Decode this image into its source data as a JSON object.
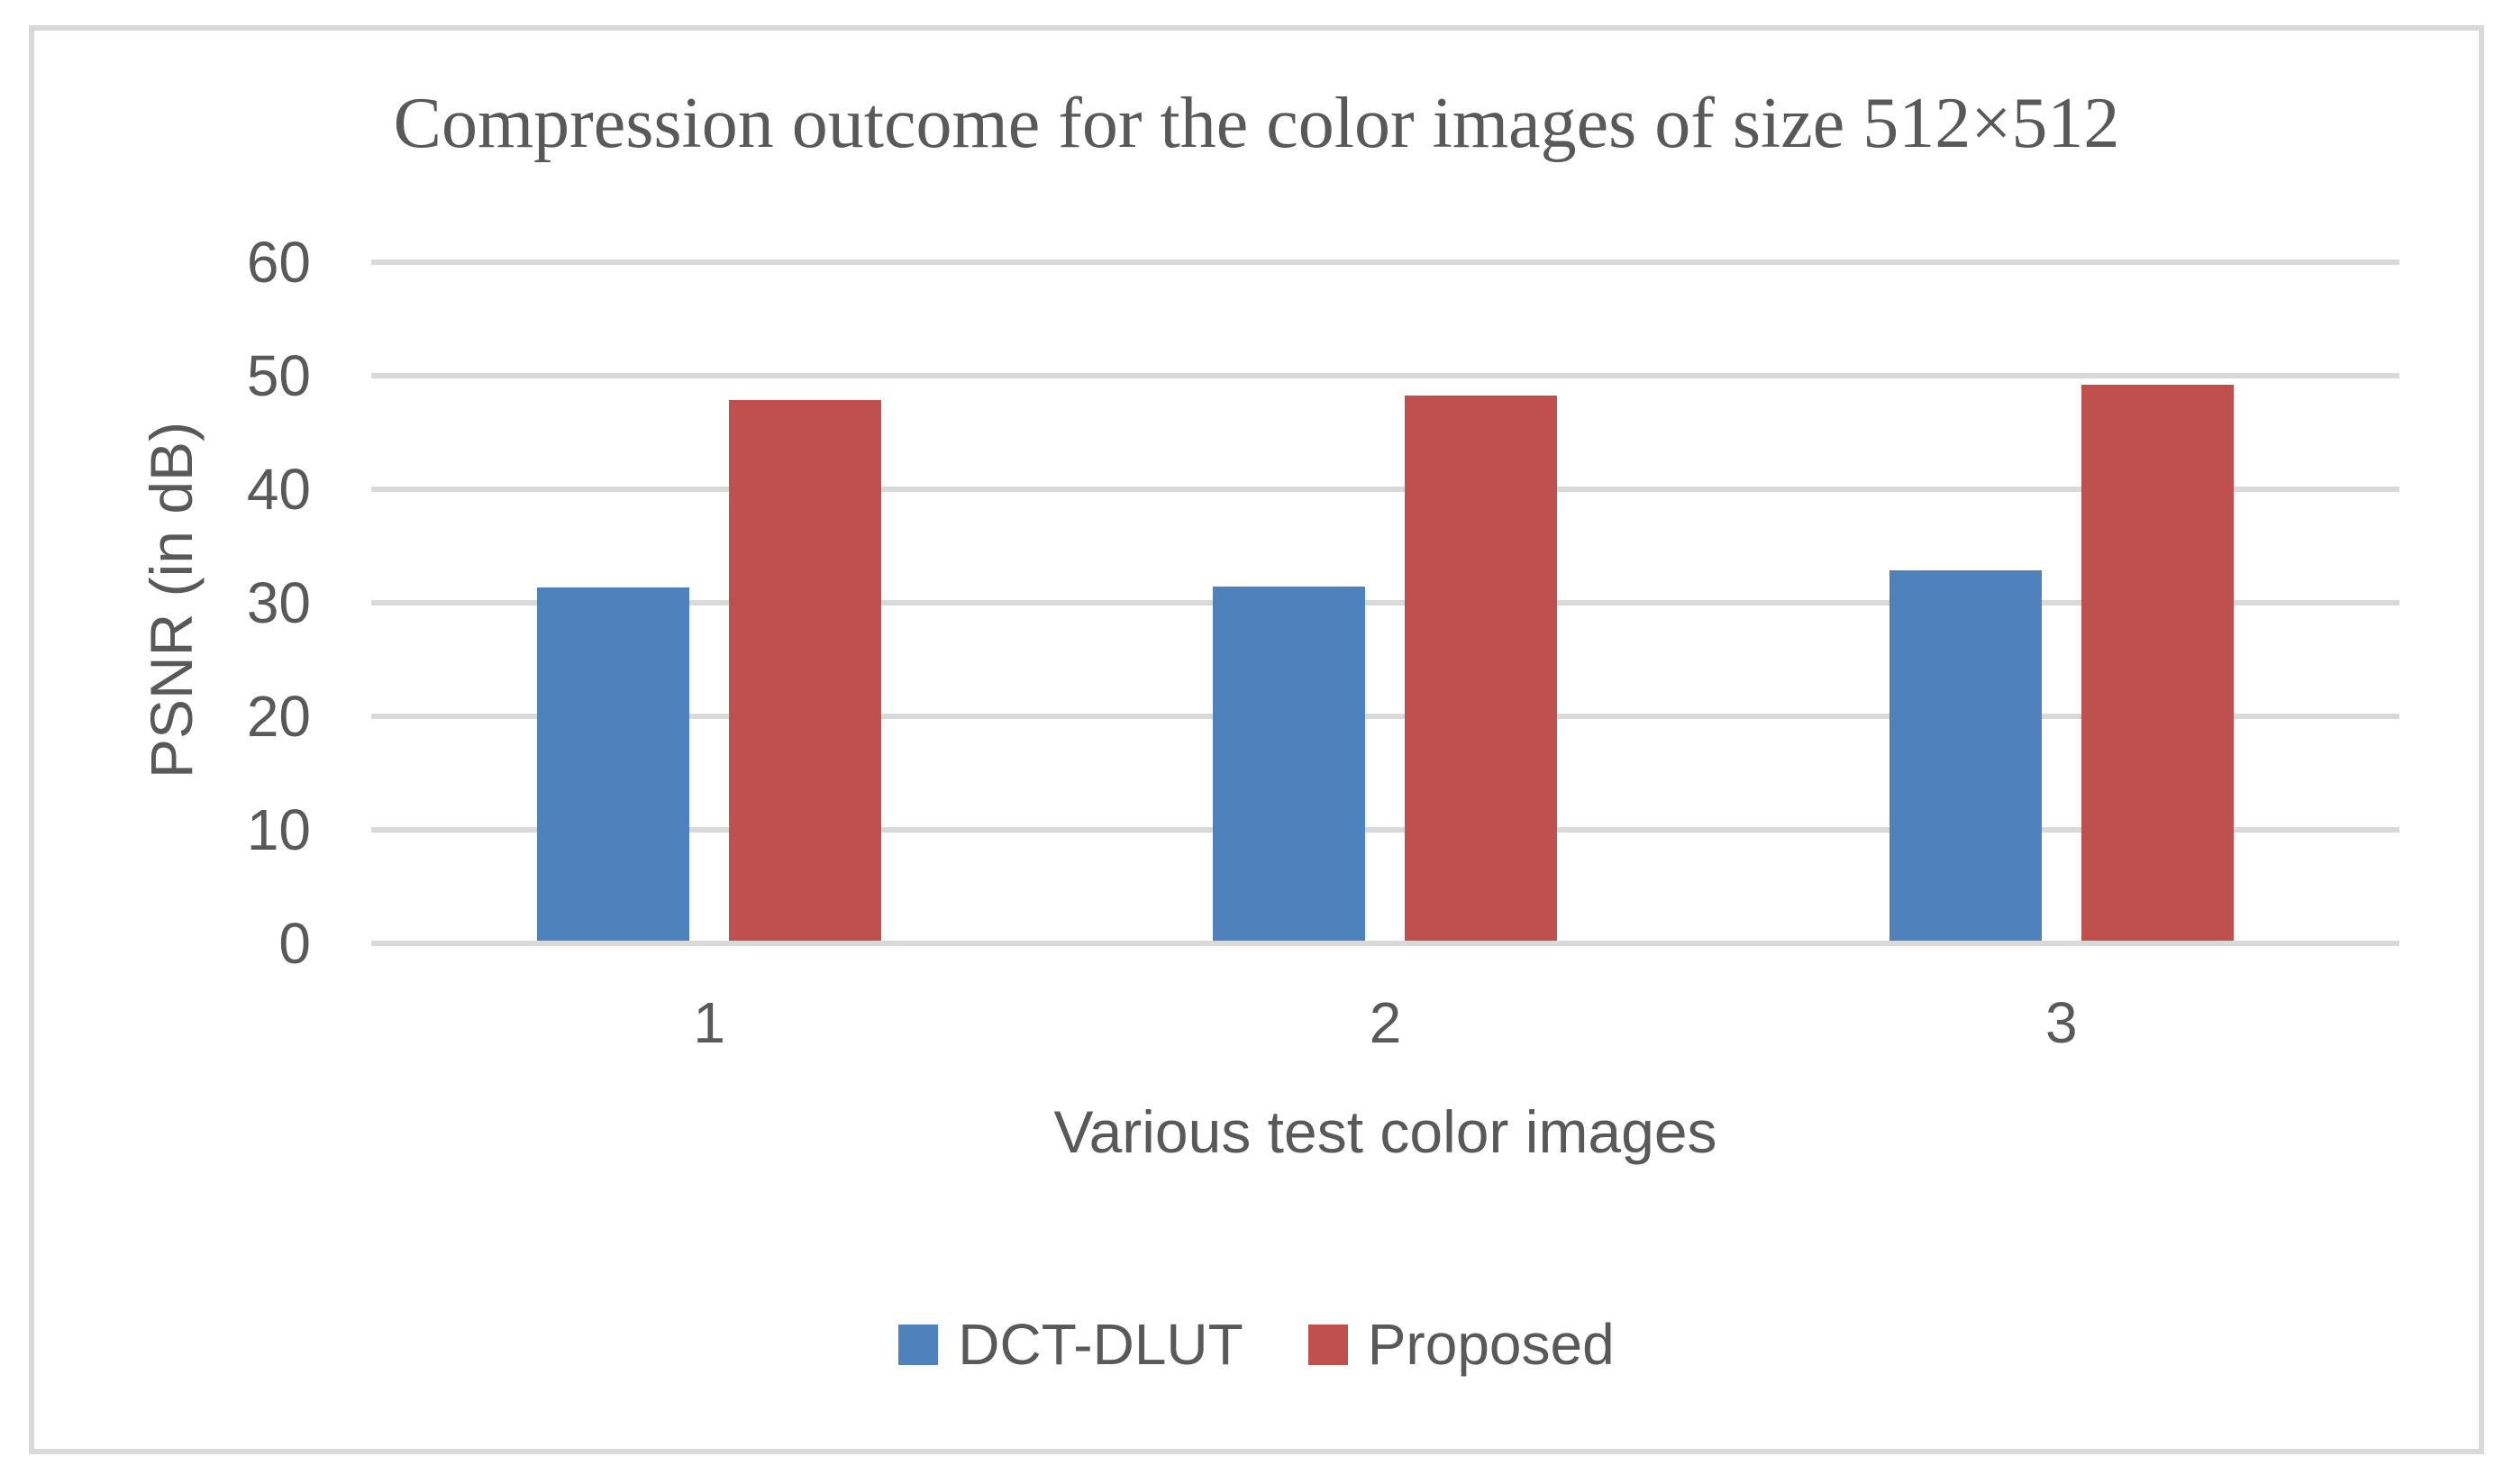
{
  "figure": {
    "background_color": "#FFFFFF",
    "border_color": "#D9D9D9",
    "text_color": "#595959"
  },
  "chart_data": {
    "type": "bar",
    "title": "Compression outcome for the color images of size 512×512",
    "xlabel": "Various test color images",
    "ylabel": "PSNR (in dB)",
    "categories": [
      "1",
      "2",
      "3"
    ],
    "series": [
      {
        "name": "DCT-DLUT",
        "color": "#4F81BD",
        "values": [
          31.1,
          31.2,
          32.6
        ]
      },
      {
        "name": "Proposed",
        "color": "#C0504D",
        "values": [
          47.6,
          48.0,
          49.0
        ]
      }
    ],
    "ylim": [
      0,
      60
    ],
    "y_ticks": [
      0,
      10,
      20,
      30,
      40,
      50,
      60
    ],
    "grid": true,
    "gridline_color": "#D9D9D9",
    "legend_position": "bottom"
  }
}
